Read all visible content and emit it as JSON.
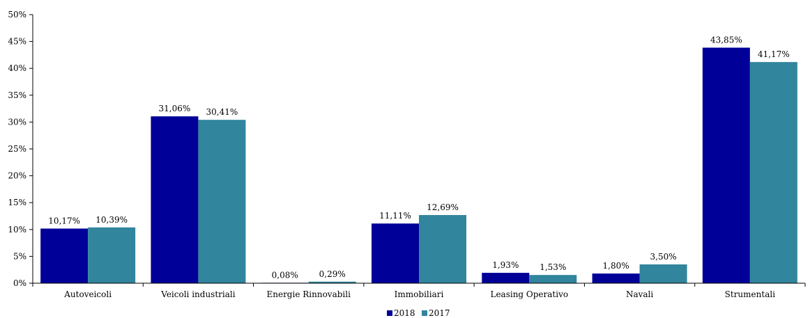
{
  "chart_data": {
    "type": "bar",
    "categories": [
      "Autoveicoli",
      "Veicoli industriali",
      "Energie Rinnovabili",
      "Immobiliari",
      "Leasing Operativo",
      "Navali",
      "Strumentali"
    ],
    "series": [
      {
        "name": "2018",
        "color": "#000099",
        "values": [
          10.17,
          31.06,
          0.08,
          11.11,
          1.93,
          1.8,
          43.85
        ],
        "labels": [
          "10,17%",
          "31,06%",
          "0,08%",
          "11,11%",
          "1,93%",
          "1,80%",
          "43,85%"
        ]
      },
      {
        "name": "2017",
        "color": "#31859C",
        "values": [
          10.39,
          30.41,
          0.29,
          12.69,
          1.53,
          3.5,
          41.17
        ],
        "labels": [
          "10,39%",
          "30,41%",
          "0,29%",
          "12,69%",
          "1,53%",
          "3,50%",
          "41,17%"
        ]
      }
    ],
    "yticks": [
      "0%",
      "5%",
      "10%",
      "15%",
      "20%",
      "25%",
      "30%",
      "35%",
      "40%",
      "45%",
      "50%"
    ],
    "ylim": [
      0,
      50
    ],
    "grid": false,
    "legend_position": "bottom"
  }
}
